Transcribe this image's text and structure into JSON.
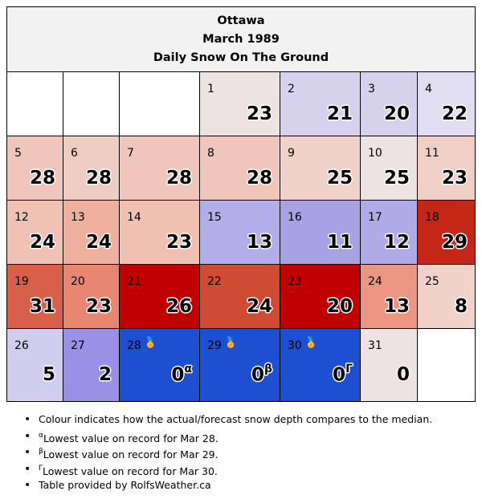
{
  "header": {
    "city": "Ottawa",
    "month": "March 1989",
    "title": "Daily Snow On The Ground"
  },
  "legend_colors": {
    "far_above": "#c00000",
    "above": "#cf4b33",
    "slightly_above": "#f0c6bc",
    "near": "#eee3e3",
    "slightly_below": "#d6d2ee",
    "below": "#a6a2e4",
    "record_low": "#1f4fd1"
  },
  "days": [
    {
      "day": "",
      "value": "",
      "color": "#ffffff"
    },
    {
      "day": "",
      "value": "",
      "color": "#ffffff"
    },
    {
      "day": "",
      "value": "",
      "color": "#ffffff"
    },
    {
      "day": "1",
      "value": "23",
      "color": "#eee3e3"
    },
    {
      "day": "2",
      "value": "21",
      "color": "#d6d2ee"
    },
    {
      "day": "3",
      "value": "20",
      "color": "#d6d2ee"
    },
    {
      "day": "4",
      "value": "22",
      "color": "#e1def1"
    },
    {
      "day": "5",
      "value": "28",
      "color": "#f0c6bc"
    },
    {
      "day": "6",
      "value": "28",
      "color": "#f0cdc4"
    },
    {
      "day": "7",
      "value": "28",
      "color": "#f0c6bc"
    },
    {
      "day": "8",
      "value": "28",
      "color": "#f0c6bc"
    },
    {
      "day": "9",
      "value": "25",
      "color": "#f0d2ca"
    },
    {
      "day": "10",
      "value": "25",
      "color": "#eee3e3"
    },
    {
      "day": "11",
      "value": "23",
      "color": "#f0cfc6"
    },
    {
      "day": "12",
      "value": "24",
      "color": "#f0c1b5"
    },
    {
      "day": "13",
      "value": "24",
      "color": "#efb19f"
    },
    {
      "day": "14",
      "value": "23",
      "color": "#f0c0b3"
    },
    {
      "day": "15",
      "value": "13",
      "color": "#b3ade9"
    },
    {
      "day": "16",
      "value": "11",
      "color": "#a6a2e4"
    },
    {
      "day": "17",
      "value": "12",
      "color": "#b0abe8"
    },
    {
      "day": "18",
      "value": "29",
      "color": "#c42717"
    },
    {
      "day": "19",
      "value": "31",
      "color": "#d8604b"
    },
    {
      "day": "20",
      "value": "23",
      "color": "#e88672"
    },
    {
      "day": "21",
      "value": "26",
      "color": "#c00000"
    },
    {
      "day": "22",
      "value": "24",
      "color": "#cf4b33"
    },
    {
      "day": "23",
      "value": "20",
      "color": "#c00000"
    },
    {
      "day": "24",
      "value": "13",
      "color": "#eb9683"
    },
    {
      "day": "25",
      "value": "8",
      "color": "#f0d2ca"
    },
    {
      "day": "26",
      "value": "5",
      "color": "#d0cdee"
    },
    {
      "day": "27",
      "value": "2",
      "color": "#9891e5"
    },
    {
      "day": "28",
      "value": "0",
      "sup": "α",
      "medal": true,
      "color": "#1f4fd1"
    },
    {
      "day": "29",
      "value": "0",
      "sup": "β",
      "medal": true,
      "color": "#1f4fd1"
    },
    {
      "day": "30",
      "value": "0",
      "sup": "Γ",
      "medal": true,
      "color": "#1f4fd1"
    },
    {
      "day": "31",
      "value": "0",
      "color": "#eee3e3"
    },
    {
      "day": "",
      "value": "",
      "color": "#ffffff"
    }
  ],
  "notes": [
    {
      "sup": "",
      "text": "Colour indicates how the actual/forecast snow depth compares to the median."
    },
    {
      "sup": "α",
      "text": "Lowest value on record for Mar 28."
    },
    {
      "sup": "β",
      "text": "Lowest value on record for Mar 29."
    },
    {
      "sup": "Γ",
      "text": "Lowest value on record for Mar 30."
    },
    {
      "sup": "",
      "text": "Table provided by RolfsWeather.ca"
    }
  ]
}
